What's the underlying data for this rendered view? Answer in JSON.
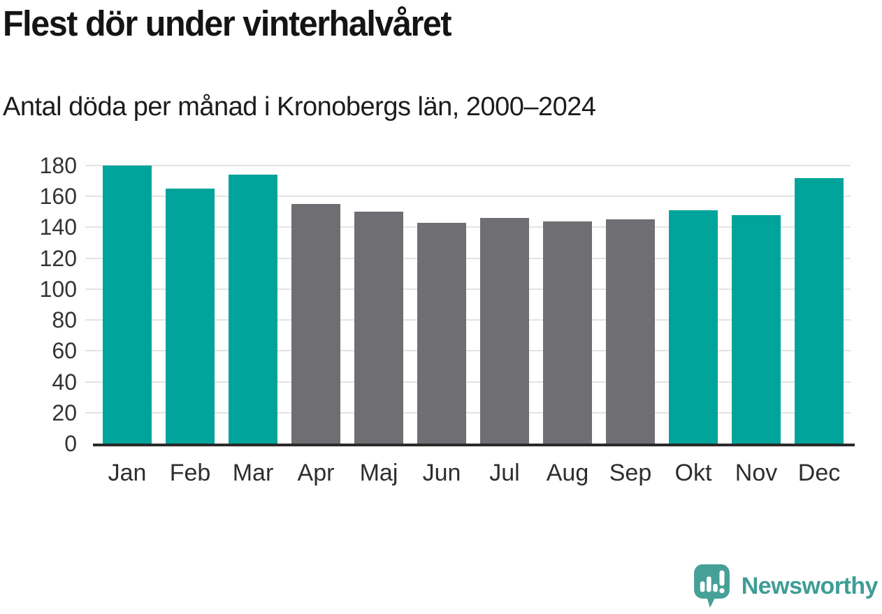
{
  "header": {
    "title": "Flest dör under vinterhalvåret",
    "subtitle": "Antal döda per månad i Kronobergs län, 2000–2024"
  },
  "chart_data": {
    "type": "bar",
    "title": "Flest dör under vinterhalvåret",
    "subtitle": "Antal döda per månad i Kronobergs län, 2000–2024",
    "categories": [
      "Jan",
      "Feb",
      "Mar",
      "Apr",
      "Maj",
      "Jun",
      "Jul",
      "Aug",
      "Sep",
      "Okt",
      "Nov",
      "Dec"
    ],
    "values": [
      180,
      165,
      174,
      155,
      150,
      143,
      146,
      144,
      145,
      151,
      148,
      172
    ],
    "bar_groups": [
      "winter",
      "winter",
      "winter",
      "summer",
      "summer",
      "summer",
      "summer",
      "summer",
      "summer",
      "winter",
      "winter",
      "winter"
    ],
    "group_colors": {
      "winter": "#00a49a",
      "summer": "#6e6e73"
    },
    "ylim": [
      0,
      180
    ],
    "yticks": [
      0,
      20,
      40,
      60,
      80,
      100,
      120,
      140,
      160,
      180
    ],
    "xlabel": "",
    "ylabel": "",
    "grid": "horizontal",
    "legend": "none"
  },
  "footer": {
    "brand": "Newsworthy",
    "logo_icon": "newsworthy-speech-bubble-bar-chart-icon"
  },
  "colors": {
    "accent_teal": "#00a49a",
    "neutral_gray": "#6e6e73",
    "logo_teal": "#46a098",
    "brand_text_teal": "#3f9d95",
    "axis_line": "#2a2a2a",
    "gridline": "#e3e3e3",
    "title_text": "#141414",
    "tick_text": "#333333"
  }
}
